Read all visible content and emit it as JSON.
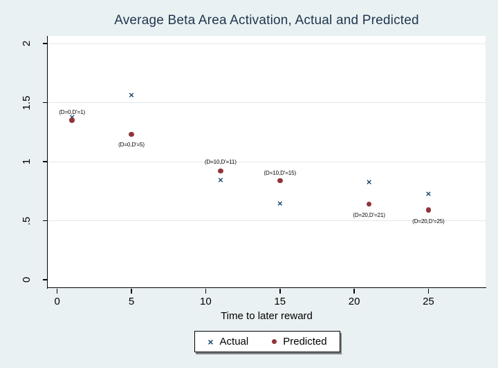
{
  "title": "Average Beta Area Activation, Actual and Predicted",
  "legend": {
    "actual": {
      "symbol": "×",
      "label": "Actual"
    },
    "predicted": {
      "symbol": "●",
      "label": "Predicted"
    }
  },
  "colors": {
    "background": "#eaf1f3",
    "plot_background": "#ffffff",
    "gridline": "#e0e7ea",
    "axis": "#000000",
    "title_text": "#20364e",
    "actual_marker": "#1a476f",
    "predicted_marker": "#90353b"
  },
  "chart_data": {
    "type": "scatter",
    "title": "Average Beta Area Activation, Actual and Predicted",
    "xlabel": "Time to later reward",
    "ylabel": "",
    "xlim": [
      0,
      28.8
    ],
    "ylim": [
      0,
      2.07
    ],
    "x_ticks": [
      0,
      5,
      10,
      15,
      20,
      25
    ],
    "y_ticks": [
      {
        "value": 0,
        "label": "0"
      },
      {
        "value": 0.5,
        "label": ".5"
      },
      {
        "value": 1,
        "label": "1"
      },
      {
        "value": 1.5,
        "label": "1.5"
      },
      {
        "value": 2,
        "label": "2"
      }
    ],
    "grid": "horizontal",
    "legend_position": "bottom-center",
    "series": [
      {
        "name": "Actual",
        "marker": "x",
        "color": "#1a476f",
        "points": [
          {
            "x": 1,
            "y": 1.37
          },
          {
            "x": 5,
            "y": 1.56
          },
          {
            "x": 11,
            "y": 0.84
          },
          {
            "x": 15,
            "y": 0.64
          },
          {
            "x": 21,
            "y": 0.82
          },
          {
            "x": 25,
            "y": 0.72
          }
        ]
      },
      {
        "name": "Predicted",
        "marker": "dot",
        "color": "#90353b",
        "points": [
          {
            "x": 1,
            "y": 1.35
          },
          {
            "x": 5,
            "y": 1.23
          },
          {
            "x": 11,
            "y": 0.92
          },
          {
            "x": 15,
            "y": 0.84
          },
          {
            "x": 21,
            "y": 0.64
          },
          {
            "x": 25,
            "y": 0.59
          }
        ]
      }
    ],
    "point_labels": [
      {
        "text": "(D=0,D'=1)",
        "x": 1,
        "anchor_y": 1.35,
        "placement": "above",
        "dy": -12
      },
      {
        "text": "(D=0,D'=5)",
        "x": 5,
        "anchor_y": 1.23,
        "placement": "below",
        "dy": 14
      },
      {
        "text": "(D=10,D'=11)",
        "x": 11,
        "anchor_y": 0.92,
        "placement": "above",
        "dy": -14
      },
      {
        "text": "(D=10,D'=15)",
        "x": 15,
        "anchor_y": 0.84,
        "placement": "above",
        "dy": -11
      },
      {
        "text": "(D=20,D'=21)",
        "x": 21,
        "anchor_y": 0.64,
        "placement": "below",
        "dy": 15
      },
      {
        "text": "(D=20,D'=25)",
        "x": 25,
        "anchor_y": 0.59,
        "placement": "below",
        "dy": 16
      }
    ]
  }
}
